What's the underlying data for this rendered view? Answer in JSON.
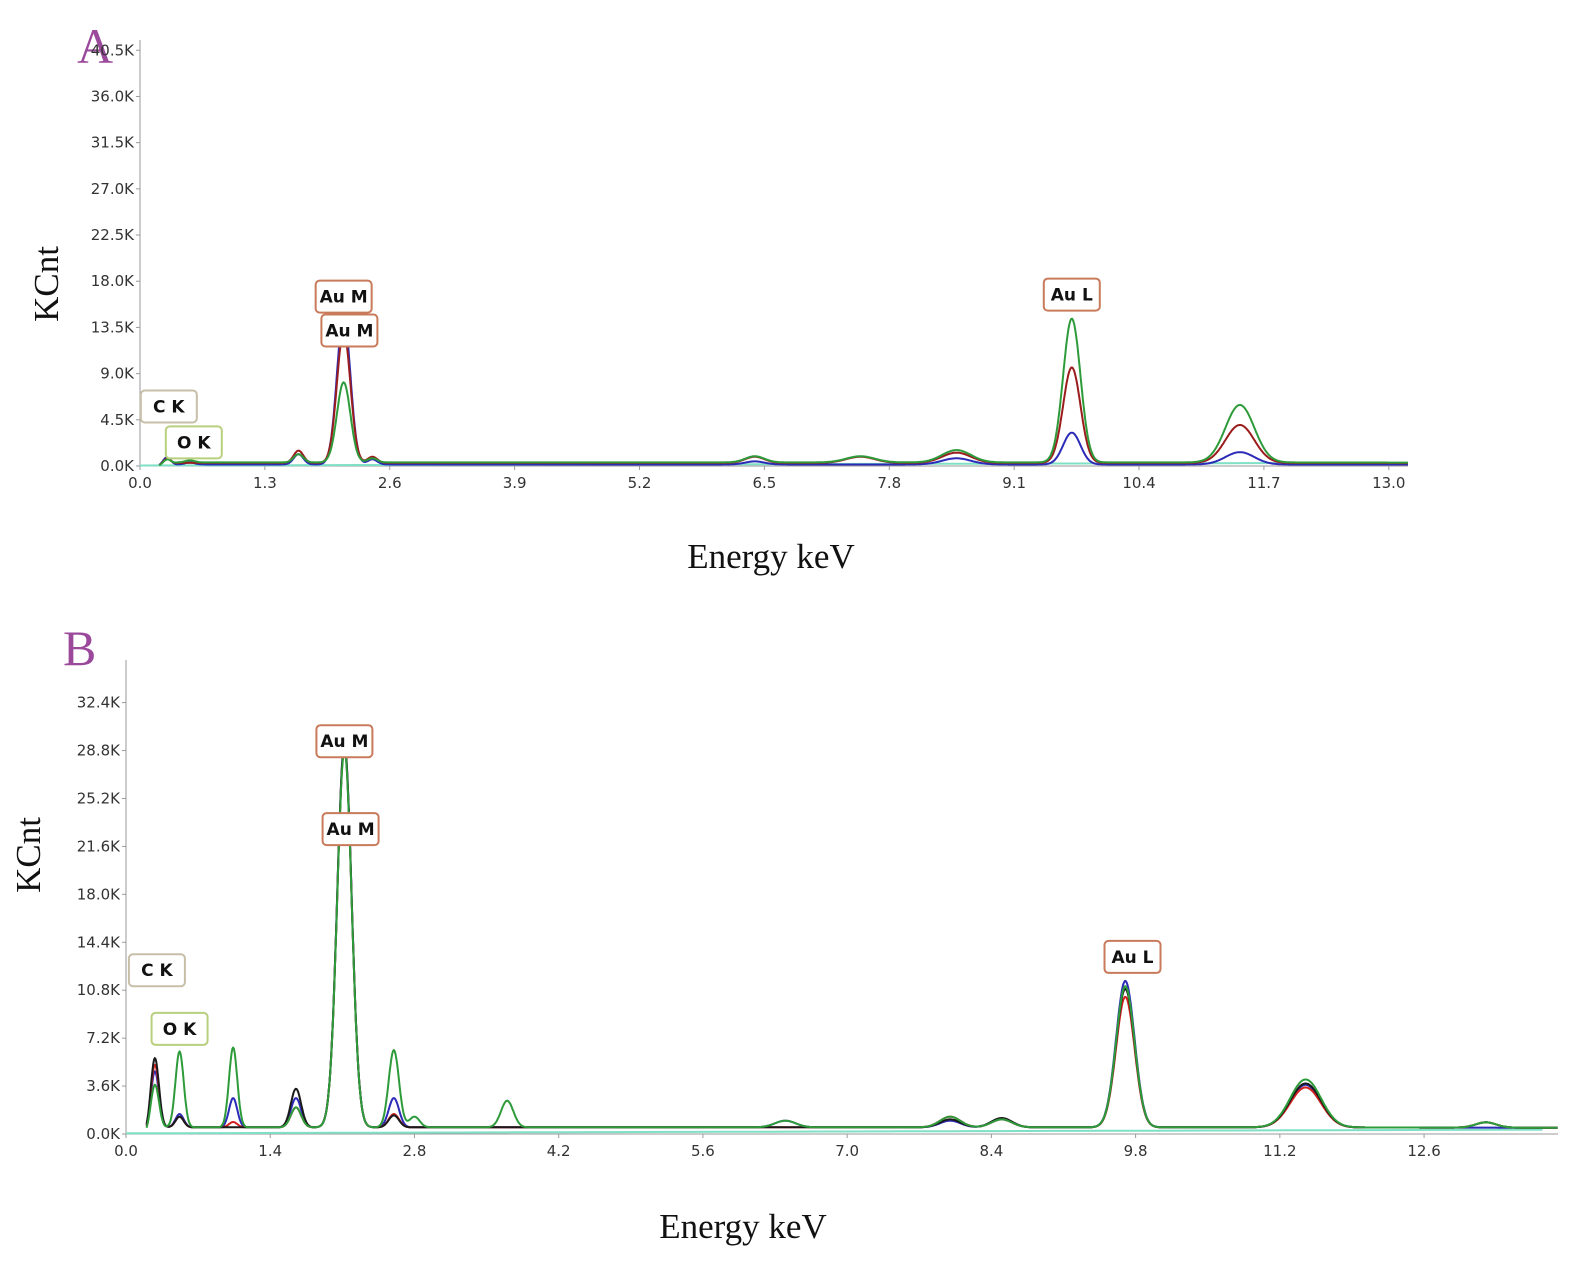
{
  "chart_data": [
    {
      "panel": "A",
      "type": "line",
      "xlabel": "Energy keV",
      "ylabel": "KCnt",
      "xlim": [
        0,
        13.2
      ],
      "ylim": [
        0,
        41.5
      ],
      "x_ticks": [
        "0.0",
        "1.3",
        "2.6",
        "3.9",
        "5.2",
        "6.5",
        "7.8",
        "9.1",
        "10.4",
        "11.7",
        "13.0"
      ],
      "y_ticks": [
        "0.0K",
        "4.5K",
        "9.0K",
        "13.5K",
        "18.0K",
        "22.5K",
        "27.0K",
        "31.5K",
        "36.0K",
        "40.5K"
      ],
      "baseline_color": "#7fe0c6",
      "series": [
        {
          "color": "#2b2bb8",
          "baseline": 0.15,
          "peaks": [
            [
              0.28,
              0.8,
              0.04
            ],
            [
              0.52,
              0.2,
              0.05
            ],
            [
              1.65,
              1.0,
              0.05
            ],
            [
              2.12,
              14.5,
              0.07
            ],
            [
              2.42,
              0.5,
              0.05
            ],
            [
              6.4,
              0.3,
              0.1
            ],
            [
              8.5,
              0.6,
              0.15
            ],
            [
              9.7,
              3.1,
              0.09
            ],
            [
              11.45,
              1.2,
              0.15
            ]
          ]
        },
        {
          "color": "#9b1c1c",
          "baseline": 0.3,
          "peaks": [
            [
              0.28,
              0.6,
              0.04
            ],
            [
              1.65,
              1.2,
              0.05
            ],
            [
              2.12,
              12.8,
              0.07
            ],
            [
              2.42,
              0.6,
              0.05
            ],
            [
              6.4,
              0.6,
              0.1
            ],
            [
              7.5,
              0.6,
              0.15
            ],
            [
              8.5,
              1.0,
              0.15
            ],
            [
              9.7,
              9.3,
              0.09
            ],
            [
              11.45,
              3.7,
              0.15
            ]
          ]
        },
        {
          "color": "#2e9b3b",
          "baseline": 0.35,
          "peaks": [
            [
              0.28,
              0.5,
              0.04
            ],
            [
              0.52,
              0.2,
              0.05
            ],
            [
              1.65,
              0.8,
              0.05
            ],
            [
              2.12,
              7.8,
              0.07
            ],
            [
              2.42,
              0.4,
              0.05
            ],
            [
              6.4,
              0.6,
              0.1
            ],
            [
              7.5,
              0.6,
              0.15
            ],
            [
              8.5,
              1.2,
              0.15
            ],
            [
              9.7,
              14.0,
              0.09
            ],
            [
              11.45,
              5.6,
              0.15
            ]
          ]
        }
      ],
      "peak_labels": [
        {
          "text": "C  K",
          "x": 0.3,
          "y": 5.8,
          "color": "#c8bfa8"
        },
        {
          "text": "O  K",
          "x": 0.56,
          "y": 2.3,
          "color": "#b8cf7e"
        },
        {
          "text": "Au M",
          "x": 2.12,
          "y": 16.5,
          "color": "#c87a5a"
        },
        {
          "text": "Au M",
          "x": 2.18,
          "y": 13.2,
          "color": "#c87a5a"
        },
        {
          "text": "Au L",
          "x": 9.7,
          "y": 16.7,
          "color": "#c87a5a"
        }
      ]
    },
    {
      "panel": "B",
      "type": "line",
      "xlabel": "Energy keV",
      "ylabel": "KCnt",
      "xlim": [
        0,
        13.9
      ],
      "ylim": [
        0,
        35.6
      ],
      "x_ticks": [
        "0.0",
        "1.4",
        "2.8",
        "4.2",
        "5.6",
        "7.0",
        "8.4",
        "9.8",
        "11.2",
        "12.6"
      ],
      "y_ticks": [
        "0.0K",
        "3.6K",
        "7.2K",
        "10.8K",
        "14.4K",
        "18.0K",
        "21.6K",
        "25.2K",
        "28.8K",
        "32.4K"
      ],
      "baseline_color": "#7fe0c6",
      "series": [
        {
          "color": "#2b2bb8",
          "baseline": 0.5,
          "peaks": [
            [
              0.28,
              4.5,
              0.04
            ],
            [
              0.52,
              1.0,
              0.04
            ],
            [
              1.04,
              2.2,
              0.04
            ],
            [
              1.65,
              2.2,
              0.05
            ],
            [
              2.12,
              28.8,
              0.07
            ],
            [
              2.6,
              2.2,
              0.05
            ],
            [
              6.4,
              0.5,
              0.1
            ],
            [
              8.0,
              0.5,
              0.1
            ],
            [
              8.5,
              0.6,
              0.1
            ],
            [
              9.7,
              11.0,
              0.09
            ],
            [
              11.45,
              3.2,
              0.15
            ]
          ]
        },
        {
          "color": "#d42020",
          "baseline": 0.5,
          "peaks": [
            [
              0.28,
              5.0,
              0.04
            ],
            [
              0.52,
              0.8,
              0.04
            ],
            [
              1.04,
              0.4,
              0.04
            ],
            [
              1.65,
              1.5,
              0.05
            ],
            [
              2.12,
              28.5,
              0.07
            ],
            [
              2.6,
              1.0,
              0.05
            ],
            [
              8.0,
              0.8,
              0.1
            ],
            [
              8.5,
              0.6,
              0.1
            ],
            [
              9.7,
              9.8,
              0.09
            ],
            [
              11.45,
              3.0,
              0.15
            ],
            [
              13.2,
              0.4,
              0.1
            ]
          ]
        },
        {
          "color": "#1a1a1a",
          "baseline": 0.5,
          "peaks": [
            [
              0.28,
              5.5,
              0.04
            ],
            [
              0.52,
              0.8,
              0.04
            ],
            [
              1.65,
              2.9,
              0.05
            ],
            [
              2.12,
              28.6,
              0.07
            ],
            [
              2.6,
              0.9,
              0.05
            ],
            [
              8.0,
              0.6,
              0.1
            ],
            [
              8.5,
              0.7,
              0.1
            ],
            [
              9.7,
              10.4,
              0.09
            ],
            [
              11.45,
              3.3,
              0.15
            ],
            [
              13.2,
              0.4,
              0.1
            ]
          ]
        },
        {
          "color": "#2e9b3b",
          "baseline": 0.5,
          "peaks": [
            [
              0.28,
              3.5,
              0.04
            ],
            [
              0.52,
              5.7,
              0.04
            ],
            [
              1.04,
              6.0,
              0.04
            ],
            [
              1.65,
              1.5,
              0.05
            ],
            [
              2.12,
              28.3,
              0.07
            ],
            [
              2.6,
              5.8,
              0.05
            ],
            [
              2.8,
              0.8,
              0.05
            ],
            [
              3.7,
              2.0,
              0.06
            ],
            [
              6.4,
              0.5,
              0.1
            ],
            [
              8.0,
              0.8,
              0.1
            ],
            [
              8.5,
              0.6,
              0.1
            ],
            [
              9.7,
              10.6,
              0.09
            ],
            [
              11.45,
              3.6,
              0.15
            ],
            [
              13.2,
              0.4,
              0.1
            ]
          ]
        }
      ],
      "peak_labels": [
        {
          "text": "C  K",
          "x": 0.3,
          "y": 12.3,
          "color": "#c8bfa8"
        },
        {
          "text": "O  K",
          "x": 0.52,
          "y": 7.9,
          "color": "#b8cf7e"
        },
        {
          "text": "Au M",
          "x": 2.12,
          "y": 29.5,
          "color": "#c87a5a"
        },
        {
          "text": "Au M",
          "x": 2.18,
          "y": 22.9,
          "color": "#c87a5a"
        },
        {
          "text": "Au L",
          "x": 9.77,
          "y": 13.3,
          "color": "#c87a5a"
        }
      ]
    }
  ]
}
